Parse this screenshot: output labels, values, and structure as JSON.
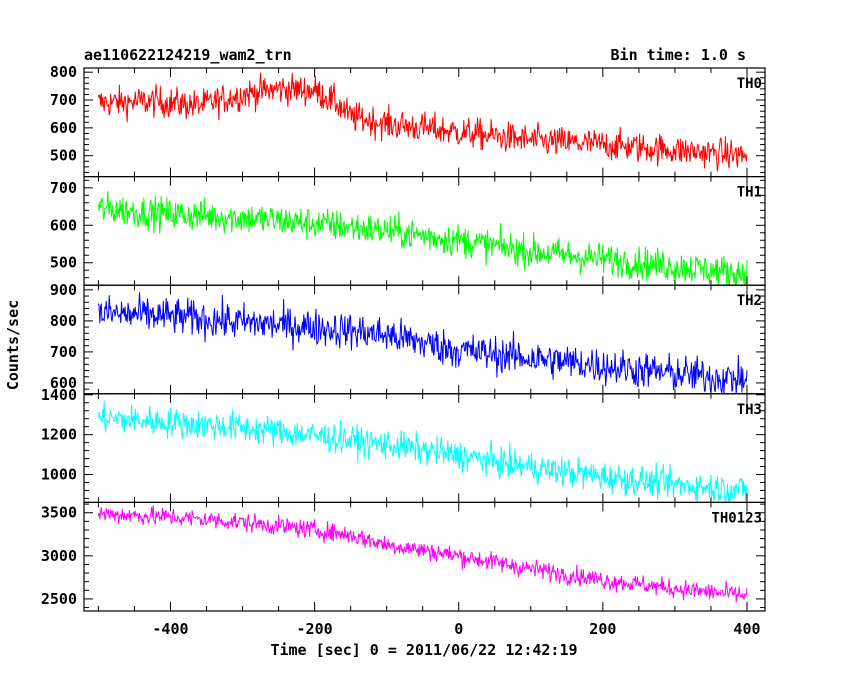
{
  "header": {
    "title": "ae110622124219_wam2_trn",
    "bin_time": "Bin time: 1.0 s"
  },
  "chart_data": {
    "type": "line",
    "xlabel": "Time [sec] 0 = 2011/06/22 12:42:19",
    "ylabel": "Counts/sec",
    "xlim": [
      -520,
      425
    ],
    "x_ticks": [
      -400,
      -200,
      0,
      200,
      400
    ],
    "x_range": [
      -500,
      400
    ],
    "panels": [
      {
        "name": "TH0",
        "color": "#ff0000",
        "ylim": [
          425,
          815
        ],
        "y_ticks": [
          500,
          600,
          700,
          800
        ],
        "trend": [
          [
            -500,
            690
          ],
          [
            -420,
            695
          ],
          [
            -360,
            680
          ],
          [
            -300,
            720
          ],
          [
            -250,
            740
          ],
          [
            -200,
            735
          ],
          [
            -170,
            690
          ],
          [
            -150,
            640
          ],
          [
            -100,
            615
          ],
          [
            0,
            585
          ],
          [
            100,
            555
          ],
          [
            200,
            540
          ],
          [
            300,
            520
          ],
          [
            400,
            500
          ]
        ],
        "noise": 28
      },
      {
        "name": "TH1",
        "color": "#00ff00",
        "ylim": [
          440,
          730
        ],
        "y_ticks": [
          500,
          600,
          700
        ],
        "trend": [
          [
            -500,
            645
          ],
          [
            -400,
            630
          ],
          [
            -300,
            620
          ],
          [
            -200,
            605
          ],
          [
            -100,
            585
          ],
          [
            0,
            560
          ],
          [
            100,
            530
          ],
          [
            200,
            510
          ],
          [
            300,
            490
          ],
          [
            400,
            470
          ]
        ],
        "noise": 22
      },
      {
        "name": "TH2",
        "color": "#0000ff",
        "ylim": [
          565,
          915
        ],
        "y_ticks": [
          600,
          700,
          800,
          900
        ],
        "trend": [
          [
            -500,
            825
          ],
          [
            -400,
            815
          ],
          [
            -300,
            795
          ],
          [
            -200,
            780
          ],
          [
            -100,
            755
          ],
          [
            0,
            705
          ],
          [
            100,
            680
          ],
          [
            200,
            655
          ],
          [
            300,
            630
          ],
          [
            400,
            610
          ]
        ],
        "noise": 30
      },
      {
        "name": "TH3",
        "color": "#00ffff",
        "ylim": [
          860,
          1405
        ],
        "y_ticks": [
          1000,
          1200,
          1400
        ],
        "trend": [
          [
            -500,
            1285
          ],
          [
            -400,
            1260
          ],
          [
            -300,
            1235
          ],
          [
            -200,
            1195
          ],
          [
            -100,
            1150
          ],
          [
            0,
            1095
          ],
          [
            100,
            1035
          ],
          [
            200,
            990
          ],
          [
            300,
            950
          ],
          [
            400,
            920
          ]
        ],
        "noise": 38
      },
      {
        "name": "TH0123",
        "color": "#ff00ff",
        "ylim": [
          2360,
          3620
        ],
        "y_ticks": [
          2500,
          3000,
          3500
        ],
        "trend": [
          [
            -500,
            3490
          ],
          [
            -400,
            3450
          ],
          [
            -300,
            3390
          ],
          [
            -200,
            3300
          ],
          [
            -150,
            3240
          ],
          [
            -100,
            3130
          ],
          [
            0,
            3000
          ],
          [
            100,
            2850
          ],
          [
            200,
            2720
          ],
          [
            300,
            2620
          ],
          [
            400,
            2540
          ]
        ],
        "noise": 55
      }
    ]
  }
}
